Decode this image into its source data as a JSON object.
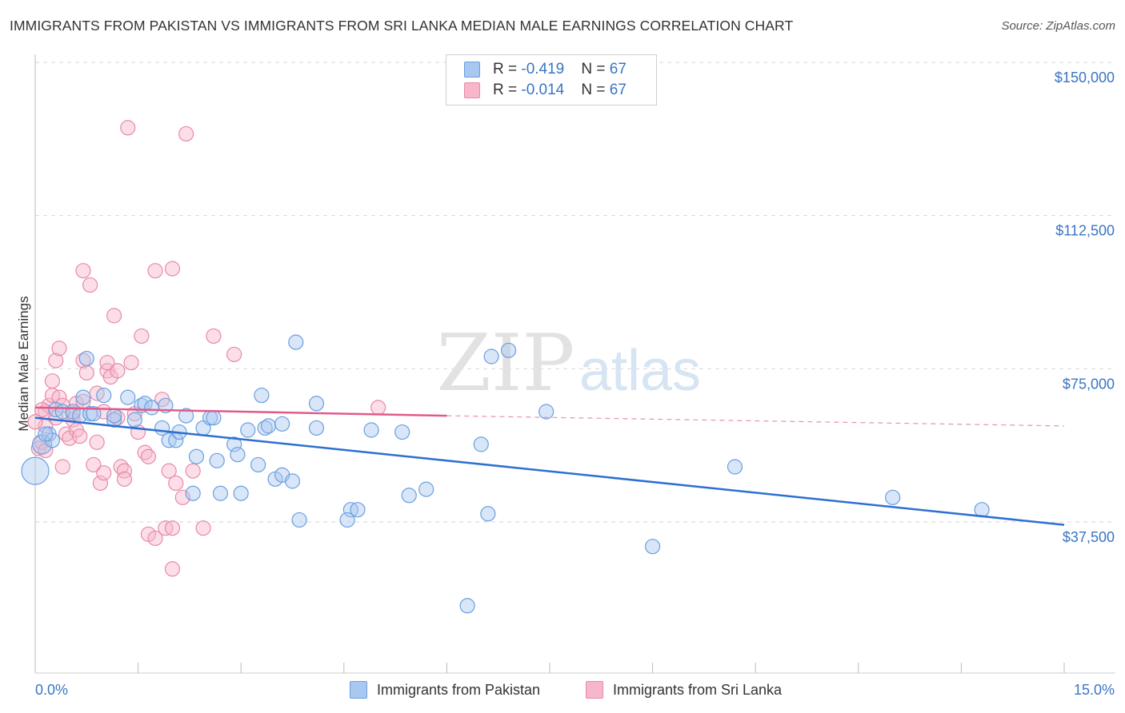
{
  "title": "IMMIGRANTS FROM PAKISTAN VS IMMIGRANTS FROM SRI LANKA MEDIAN MALE EARNINGS CORRELATION CHART",
  "source": "Source: ZipAtlas.com",
  "watermark": {
    "zip": "ZIP",
    "atlas": "atlas"
  },
  "stats": [
    {
      "r_label": "R = ",
      "r_value": "-0.419",
      "n_label": "N = ",
      "n_value": "67",
      "color": "#a8c8f0"
    },
    {
      "r_label": "R = ",
      "r_value": "-0.014",
      "n_label": "N = ",
      "n_value": "67",
      "color": "#f7b6c9"
    }
  ],
  "chart_data": {
    "type": "scatter",
    "title": "IMMIGRANTS FROM PAKISTAN VS IMMIGRANTS FROM SRI LANKA MEDIAN MALE EARNINGS CORRELATION CHART",
    "xlabel": "",
    "ylabel": "Median Male Earnings",
    "xlim": [
      0,
      15
    ],
    "ylim": [
      8000,
      155000
    ],
    "x_tick_labels": [
      "0.0%",
      "15.0%"
    ],
    "y_tick_labels": [
      "$150,000",
      "$112,500",
      "$75,000",
      "$37,500"
    ],
    "y_ticks": [
      150000,
      112500,
      75000,
      37500
    ],
    "legend": [
      "Immigrants from Pakistan",
      "Immigrants from Sri Lanka"
    ],
    "series": [
      {
        "name": "Immigrants from Pakistan",
        "color": "#6a9fe0",
        "fill": "#a8c8f0",
        "trend": {
          "x0": 0,
          "y0": 63000,
          "x1": 15,
          "y1": 36800,
          "style": "solid"
        },
        "points": [
          [
            0.0,
            50000
          ],
          [
            0.1,
            56500
          ],
          [
            0.2,
            59000
          ],
          [
            0.25,
            57500
          ],
          [
            0.3,
            65000
          ],
          [
            0.4,
            64500
          ],
          [
            0.55,
            64500
          ],
          [
            0.65,
            63500
          ],
          [
            0.7,
            68000
          ],
          [
            0.75,
            77500
          ],
          [
            0.8,
            64000
          ],
          [
            0.85,
            64000
          ],
          [
            1.0,
            68500
          ],
          [
            1.15,
            62500
          ],
          [
            1.15,
            63500
          ],
          [
            1.35,
            68000
          ],
          [
            1.45,
            62500
          ],
          [
            1.55,
            66000
          ],
          [
            1.6,
            66500
          ],
          [
            1.7,
            65500
          ],
          [
            1.85,
            60500
          ],
          [
            1.9,
            66000
          ],
          [
            1.95,
            57500
          ],
          [
            2.05,
            57500
          ],
          [
            2.1,
            59500
          ],
          [
            2.2,
            63500
          ],
          [
            2.3,
            44500
          ],
          [
            2.35,
            53500
          ],
          [
            2.45,
            60500
          ],
          [
            2.55,
            63000
          ],
          [
            2.6,
            63000
          ],
          [
            2.65,
            52500
          ],
          [
            2.7,
            44500
          ],
          [
            2.9,
            56500
          ],
          [
            2.95,
            54000
          ],
          [
            3.0,
            44500
          ],
          [
            3.1,
            60000
          ],
          [
            3.3,
            68500
          ],
          [
            3.25,
            51500
          ],
          [
            3.35,
            60500
          ],
          [
            3.4,
            61000
          ],
          [
            3.5,
            48000
          ],
          [
            3.6,
            61500
          ],
          [
            3.6,
            49000
          ],
          [
            3.75,
            47500
          ],
          [
            3.8,
            81500
          ],
          [
            3.85,
            38000
          ],
          [
            4.1,
            60500
          ],
          [
            4.1,
            66500
          ],
          [
            4.6,
            40500
          ],
          [
            4.55,
            38000
          ],
          [
            4.7,
            40500
          ],
          [
            4.9,
            60000
          ],
          [
            5.35,
            59500
          ],
          [
            5.45,
            44000
          ],
          [
            5.7,
            45500
          ],
          [
            6.3,
            17000
          ],
          [
            6.5,
            56500
          ],
          [
            6.6,
            39500
          ],
          [
            6.65,
            78000
          ],
          [
            6.9,
            79500
          ],
          [
            7.45,
            64500
          ],
          [
            9.0,
            31500
          ],
          [
            10.2,
            51000
          ],
          [
            12.5,
            43500
          ],
          [
            13.8,
            40500
          ],
          [
            0.15,
            59000
          ]
        ]
      },
      {
        "name": "Immigrants from Sri Lanka",
        "color": "#e88aa8",
        "fill": "#f7b6c9",
        "trend": {
          "x0": 0,
          "y0": 65500,
          "x1": 6,
          "y1": 63500,
          "x2": 15,
          "y2": 61000,
          "style": "solid-then-dashed"
        },
        "points": [
          [
            0.05,
            55500
          ],
          [
            0.1,
            57000
          ],
          [
            0.15,
            61000
          ],
          [
            0.15,
            64500
          ],
          [
            0.2,
            66000
          ],
          [
            0.25,
            68500
          ],
          [
            0.25,
            72000
          ],
          [
            0.3,
            77000
          ],
          [
            0.3,
            63000
          ],
          [
            0.35,
            80000
          ],
          [
            0.35,
            68000
          ],
          [
            0.4,
            66000
          ],
          [
            0.4,
            51000
          ],
          [
            0.45,
            59000
          ],
          [
            0.5,
            58000
          ],
          [
            0.55,
            62500
          ],
          [
            0.55,
            64000
          ],
          [
            0.6,
            66500
          ],
          [
            0.6,
            60000
          ],
          [
            0.65,
            58500
          ],
          [
            0.7,
            99000
          ],
          [
            0.7,
            77000
          ],
          [
            0.75,
            74000
          ],
          [
            0.7,
            67000
          ],
          [
            0.8,
            95500
          ],
          [
            0.85,
            51500
          ],
          [
            0.9,
            57000
          ],
          [
            0.9,
            69000
          ],
          [
            0.95,
            47000
          ],
          [
            1.0,
            64500
          ],
          [
            1.0,
            49500
          ],
          [
            1.05,
            74500
          ],
          [
            1.05,
            76500
          ],
          [
            1.1,
            73000
          ],
          [
            1.15,
            88000
          ],
          [
            1.2,
            74500
          ],
          [
            1.2,
            63000
          ],
          [
            1.25,
            51000
          ],
          [
            1.3,
            50000
          ],
          [
            1.3,
            48000
          ],
          [
            1.35,
            134000
          ],
          [
            1.4,
            76500
          ],
          [
            1.45,
            64000
          ],
          [
            1.5,
            59500
          ],
          [
            1.55,
            83000
          ],
          [
            1.6,
            54500
          ],
          [
            1.65,
            53500
          ],
          [
            1.65,
            34500
          ],
          [
            1.75,
            99000
          ],
          [
            1.75,
            33500
          ],
          [
            1.85,
            67500
          ],
          [
            1.9,
            36000
          ],
          [
            1.95,
            50000
          ],
          [
            2.0,
            36000
          ],
          [
            2.0,
            26000
          ],
          [
            2.05,
            47000
          ],
          [
            2.0,
            99500
          ],
          [
            2.15,
            43500
          ],
          [
            2.2,
            132500
          ],
          [
            2.3,
            50000
          ],
          [
            2.45,
            36000
          ],
          [
            2.6,
            83000
          ],
          [
            2.9,
            78500
          ],
          [
            5.0,
            65500
          ],
          [
            0.1,
            65000
          ],
          [
            0.15,
            55000
          ],
          [
            0.0,
            62000
          ]
        ]
      }
    ]
  }
}
